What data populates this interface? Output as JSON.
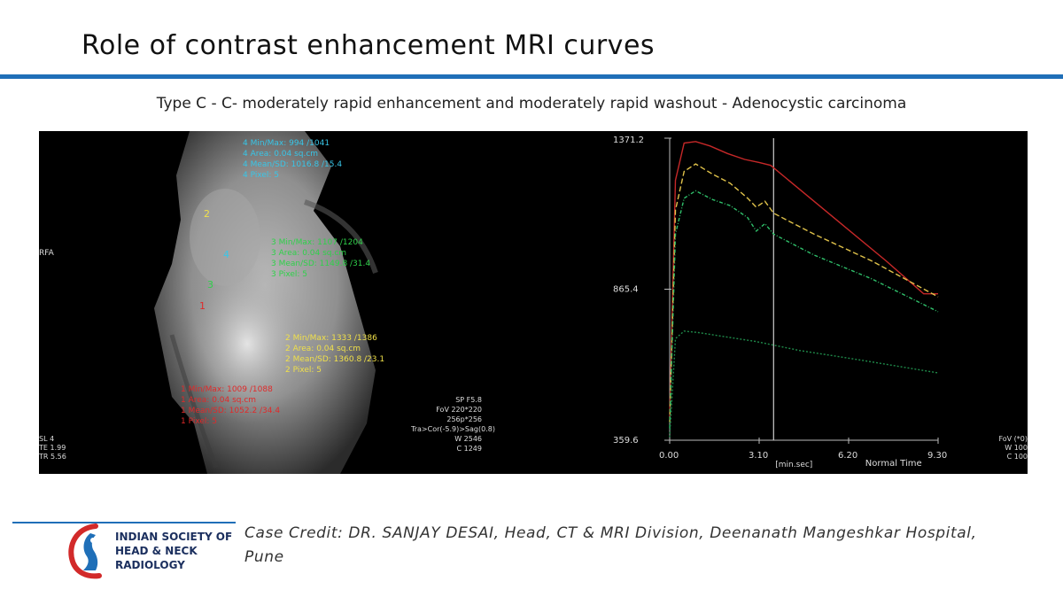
{
  "slide": {
    "title": "Role of contrast enhancement MRI curves",
    "subtitle": "Type C - C- moderately rapid enhancement and moderately rapid washout - Adenocystic carcinoma"
  },
  "mri_overlay": {
    "orientation": "RFA",
    "roi4": {
      "label": "4",
      "lines": [
        "4 Min/Max: 994 /1041",
        "4 Area: 0.04 sq.cm",
        "4 Mean/SD: 1016.8 /15.4",
        "4 Pixel: 5"
      ],
      "color": "#38c6e8"
    },
    "roi3": {
      "label": "3",
      "lines": [
        "3 Min/Max: 1107 /1204",
        "3 Area: 0.04 sq.cm",
        "3 Mean/SD: 1149.8 /31.4",
        "3 Pixel: 5"
      ],
      "color": "#2fd14a"
    },
    "roi2": {
      "label": "2",
      "lines": [
        "2 Min/Max: 1333 /1386",
        "2 Area: 0.04 sq.cm",
        "2 Mean/SD: 1360.8 /23.1",
        "2 Pixel: 5"
      ],
      "color": "#f0e04a"
    },
    "roi1": {
      "label": "1",
      "lines": [
        "1 Min/Max: 1009 /1088",
        "1 Area: 0.04 sq.cm",
        "1 Mean/SD: 1052.2 /34.4",
        "1 Pixel: 5"
      ],
      "color": "#e02a2a"
    },
    "seq_info": [
      "SL 4",
      "TE 1.99",
      "TR 5.56"
    ],
    "scan_info": [
      "SP F5.8",
      "FoV 220*220",
      "256p*256",
      "Tra>Cor(-5.9)>Sag(0.8)",
      "W 2546",
      "C 1249"
    ],
    "fov_info": [
      "FoV (*0)",
      "W 100",
      "C 100"
    ]
  },
  "chart_data": {
    "type": "line",
    "x_ticks": [
      "0.00",
      "3.10",
      "6.20",
      "9.30"
    ],
    "y_ticks": [
      "1371.2",
      "865.4",
      "359.6"
    ],
    "x_unit": "[min.sec]",
    "xlabel": "Normal Time",
    "ylim": [
      359.6,
      1371.2
    ],
    "xlim": [
      0,
      9.3
    ],
    "cursor_x": 3.6,
    "series": [
      {
        "color": "#c62828",
        "dash": "",
        "x": [
          0,
          0.2,
          0.5,
          0.9,
          1.4,
          2.0,
          2.6,
          3.1,
          3.5,
          4.5,
          6.0,
          7.5,
          8.8,
          9.3
        ],
        "y": [
          440,
          1230,
          1355,
          1360,
          1345,
          1320,
          1300,
          1290,
          1280,
          1200,
          1080,
          960,
          850,
          850
        ]
      },
      {
        "color": "#e0c24a",
        "dash": "6,3",
        "x": [
          0,
          0.2,
          0.5,
          0.9,
          1.5,
          2.1,
          2.7,
          3.0,
          3.3,
          3.6,
          5.0,
          7.0,
          9.3
        ],
        "y": [
          420,
          1130,
          1260,
          1285,
          1250,
          1220,
          1170,
          1140,
          1160,
          1120,
          1050,
          960,
          840
        ]
      },
      {
        "color": "#2fbf6a",
        "dash": "4,2,1,2",
        "x": [
          0,
          0.2,
          0.5,
          0.9,
          1.5,
          2.1,
          2.7,
          3.0,
          3.3,
          3.6,
          5.0,
          7.0,
          9.3
        ],
        "y": [
          400,
          1050,
          1170,
          1195,
          1165,
          1145,
          1105,
          1060,
          1085,
          1050,
          980,
          900,
          790
        ]
      },
      {
        "color": "#1f8a4a",
        "dash": "2,2",
        "x": [
          0,
          0.2,
          0.5,
          1.0,
          2.0,
          3.0,
          4.5,
          6.5,
          9.3
        ],
        "y": [
          370,
          700,
          725,
          720,
          705,
          690,
          660,
          630,
          585
        ]
      }
    ]
  },
  "footer": {
    "org_lines": [
      "INDIAN SOCIETY OF",
      "HEAD & NECK",
      "RADIOLOGY"
    ],
    "credit": "Case Credit: DR. SANJAY DESAI, Head, CT & MRI Division, Deenanath Mangeshkar Hospital, Pune"
  }
}
